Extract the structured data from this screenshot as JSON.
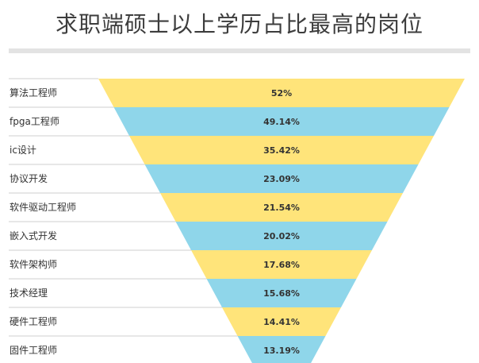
{
  "title": "求职端硕士以上学历占比最高的岗位",
  "colors": {
    "yellow": "#ffe47a",
    "blue": "#8fd6ea",
    "title_bar": "#e3e3e3"
  },
  "chart_data": {
    "type": "funnel",
    "title": "求职端硕士以上学历占比最高的岗位",
    "categories": [
      "算法工程师",
      "fpga工程师",
      "ic设计",
      "协议开发",
      "软件驱动工程师",
      "嵌入式开发",
      "软件架构师",
      "技术经理",
      "硬件工程师",
      "固件工程师"
    ],
    "values": [
      52,
      49.14,
      35.42,
      23.09,
      21.54,
      20.02,
      17.68,
      15.68,
      14.41,
      13.19
    ],
    "value_labels": [
      "52%",
      "49.14%",
      "35.42%",
      "23.09%",
      "21.54%",
      "20.02%",
      "17.68%",
      "15.68%",
      "14.41%",
      "13.19%"
    ],
    "band_colors": [
      "#ffe47a",
      "#8fd6ea"
    ],
    "label_position": "left"
  }
}
